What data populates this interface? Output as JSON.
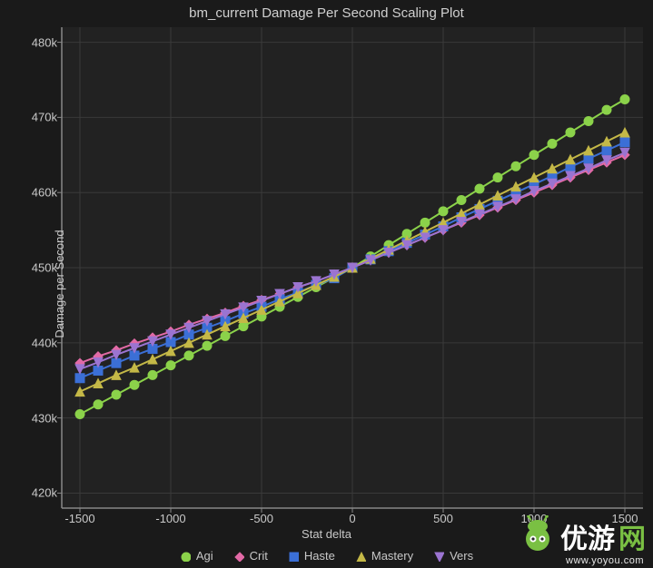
{
  "title": "bm_current Damage Per Second Scaling Plot",
  "axis": {
    "x_label": "Stat delta",
    "y_label": "Damage per Second",
    "xlim": [
      -1600,
      1600
    ],
    "ylim": [
      418,
      482
    ],
    "xticks": [
      -1500,
      -1000,
      -500,
      0,
      500,
      1000,
      1500
    ],
    "yticks": [
      420,
      430,
      440,
      450,
      460,
      470,
      480
    ],
    "ytick_labels": [
      "420k",
      "430k",
      "440k",
      "450k",
      "460k",
      "470k",
      "480k"
    ]
  },
  "style": {
    "background": "#1a1a1a",
    "plot_bg": "#222222",
    "grid_color": "#3a3a3a",
    "axis_line_color": "#888888",
    "tick_color": "#888888",
    "text_color": "#c8c8c8",
    "title_color": "#d0d0d0",
    "line_width": 2,
    "marker_size": 5
  },
  "series": [
    {
      "name": "Agi",
      "marker": "circle",
      "color": "#8bd24a",
      "x": [
        -1500,
        -1400,
        -1300,
        -1200,
        -1100,
        -1000,
        -900,
        -800,
        -700,
        -600,
        -500,
        -400,
        -300,
        -200,
        -100,
        0,
        100,
        200,
        300,
        400,
        500,
        600,
        700,
        800,
        900,
        1000,
        1100,
        1200,
        1300,
        1400,
        1500
      ],
      "y": [
        430.5,
        431.8,
        433.1,
        434.4,
        435.7,
        437.0,
        438.3,
        439.6,
        440.9,
        442.2,
        443.5,
        444.8,
        446.1,
        447.4,
        448.7,
        450.0,
        451.5,
        453.0,
        454.5,
        456.0,
        457.5,
        459.0,
        460.5,
        462.0,
        463.5,
        465.0,
        466.5,
        468.0,
        469.5,
        471.0,
        472.4
      ]
    },
    {
      "name": "Crit",
      "marker": "diamond",
      "color": "#e26aa6",
      "x": [
        -1500,
        -1400,
        -1300,
        -1200,
        -1100,
        -1000,
        -900,
        -800,
        -700,
        -600,
        -500,
        -400,
        -300,
        -200,
        -100,
        0,
        100,
        200,
        300,
        400,
        500,
        600,
        700,
        800,
        900,
        1000,
        1100,
        1200,
        1300,
        1400,
        1500
      ],
      "y": [
        437.3,
        438.2,
        439.0,
        439.9,
        440.7,
        441.5,
        442.4,
        443.2,
        444.0,
        444.9,
        445.7,
        446.5,
        447.4,
        448.2,
        449.1,
        450.0,
        451.0,
        452.0,
        453.0,
        454.0,
        455.0,
        456.0,
        457.0,
        458.0,
        459.0,
        460.0,
        461.0,
        462.0,
        463.0,
        464.0,
        465.0
      ]
    },
    {
      "name": "Haste",
      "marker": "square",
      "color": "#3b6fd6",
      "x": [
        -1500,
        -1400,
        -1300,
        -1200,
        -1100,
        -1000,
        -900,
        -800,
        -700,
        -600,
        -500,
        -400,
        -300,
        -200,
        -100,
        0,
        100,
        200,
        300,
        400,
        500,
        600,
        700,
        800,
        900,
        1000,
        1100,
        1200,
        1300,
        1400,
        1500
      ],
      "y": [
        435.3,
        436.3,
        437.3,
        438.3,
        439.2,
        440.1,
        441.1,
        442.0,
        442.9,
        443.9,
        444.8,
        445.8,
        446.7,
        447.7,
        448.6,
        450.0,
        451.1,
        452.2,
        453.3,
        454.4,
        455.5,
        456.7,
        457.8,
        458.9,
        460.0,
        461.1,
        462.2,
        463.4,
        464.5,
        465.6,
        466.7
      ]
    },
    {
      "name": "Mastery",
      "marker": "triangle",
      "color": "#c4b847",
      "x": [
        -1500,
        -1400,
        -1300,
        -1200,
        -1100,
        -1000,
        -900,
        -800,
        -700,
        -600,
        -500,
        -400,
        -300,
        -200,
        -100,
        0,
        100,
        200,
        300,
        400,
        500,
        600,
        700,
        800,
        900,
        1000,
        1100,
        1200,
        1300,
        1400,
        1500
      ],
      "y": [
        433.5,
        434.6,
        435.7,
        436.7,
        437.8,
        438.9,
        440.0,
        441.1,
        442.2,
        443.3,
        444.4,
        445.5,
        446.6,
        447.7,
        448.8,
        450.0,
        451.2,
        452.4,
        453.6,
        454.8,
        456.0,
        457.2,
        458.4,
        459.6,
        460.8,
        462.0,
        463.2,
        464.4,
        465.6,
        466.8,
        468.0
      ]
    },
    {
      "name": "Vers",
      "marker": "triangle-down",
      "color": "#9b74d1",
      "x": [
        -1500,
        -1400,
        -1300,
        -1200,
        -1100,
        -1000,
        -900,
        -800,
        -700,
        -600,
        -500,
        -400,
        -300,
        -200,
        -100,
        0,
        100,
        200,
        300,
        400,
        500,
        600,
        700,
        800,
        900,
        1000,
        1100,
        1200,
        1300,
        1400,
        1500
      ],
      "y": [
        436.5,
        437.4,
        438.4,
        439.3,
        440.2,
        441.1,
        442.0,
        442.9,
        443.8,
        444.7,
        445.6,
        446.5,
        447.4,
        448.2,
        449.1,
        450.0,
        451.0,
        452.0,
        453.0,
        454.0,
        455.0,
        456.1,
        457.1,
        458.1,
        459.1,
        460.2,
        461.2,
        462.2,
        463.2,
        464.3,
        465.3
      ]
    }
  ],
  "legend": {
    "items": [
      "Agi",
      "Crit",
      "Haste",
      "Mastery",
      "Vers"
    ]
  },
  "watermark": {
    "text_a": "优游",
    "text_b": "网",
    "url": "www.yoyou.com"
  }
}
